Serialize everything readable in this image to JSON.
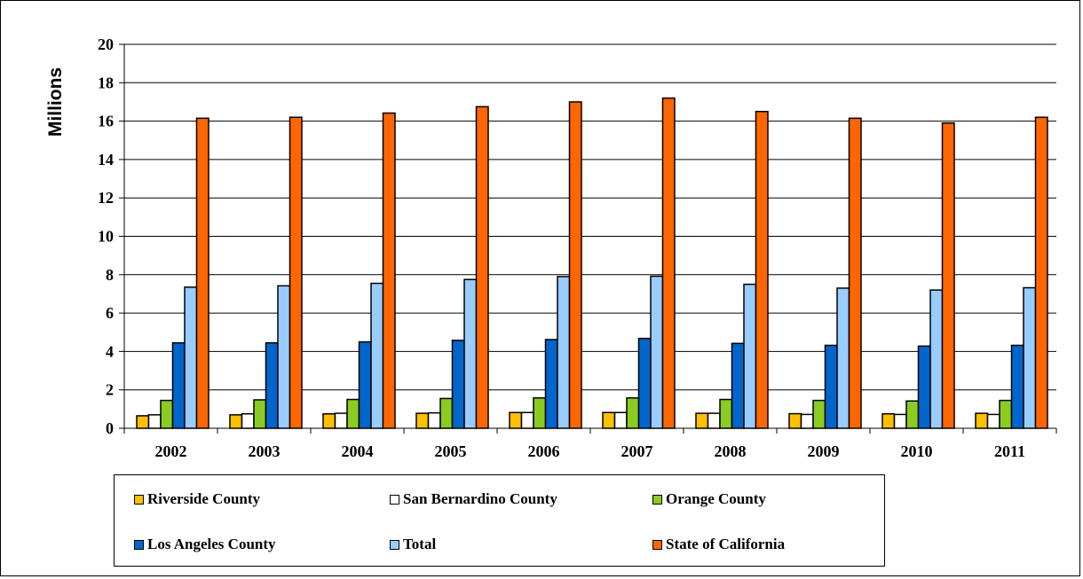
{
  "chart_data": {
    "type": "bar",
    "ylabel": "Millions",
    "ylim": [
      0,
      20
    ],
    "yticks": [
      "0",
      "2",
      "4",
      "6",
      "8",
      "10",
      "12",
      "14",
      "16",
      "18",
      "20"
    ],
    "categories": [
      "2002",
      "2003",
      "2004",
      "2005",
      "2006",
      "2007",
      "2008",
      "2009",
      "2010",
      "2011"
    ],
    "grid": true,
    "legend_position": "bottom",
    "series": [
      {
        "name": "Riverside County",
        "color": "#FFC000",
        "values": [
          0.65,
          0.7,
          0.75,
          0.78,
          0.82,
          0.82,
          0.78,
          0.76,
          0.75,
          0.78
        ]
      },
      {
        "name": "San Bernardino County",
        "color": "#FFFFFF",
        "values": [
          0.7,
          0.75,
          0.78,
          0.8,
          0.82,
          0.82,
          0.78,
          0.72,
          0.72,
          0.72
        ]
      },
      {
        "name": "Orange County",
        "color": "#8ACC22",
        "values": [
          1.45,
          1.48,
          1.5,
          1.55,
          1.58,
          1.58,
          1.5,
          1.45,
          1.42,
          1.45
        ]
      },
      {
        "name": "Los Angeles County",
        "color": "#0066CC",
        "values": [
          4.45,
          4.45,
          4.5,
          4.58,
          4.62,
          4.68,
          4.42,
          4.32,
          4.28,
          4.32
        ]
      },
      {
        "name": "Total",
        "color": "#99CCFF",
        "values": [
          7.35,
          7.42,
          7.55,
          7.75,
          7.9,
          7.92,
          7.5,
          7.3,
          7.2,
          7.32
        ]
      },
      {
        "name": "State of California",
        "color": "#FF6600",
        "values": [
          16.15,
          16.2,
          16.42,
          16.75,
          17.0,
          17.2,
          16.5,
          16.15,
          15.9,
          16.2
        ]
      }
    ]
  }
}
